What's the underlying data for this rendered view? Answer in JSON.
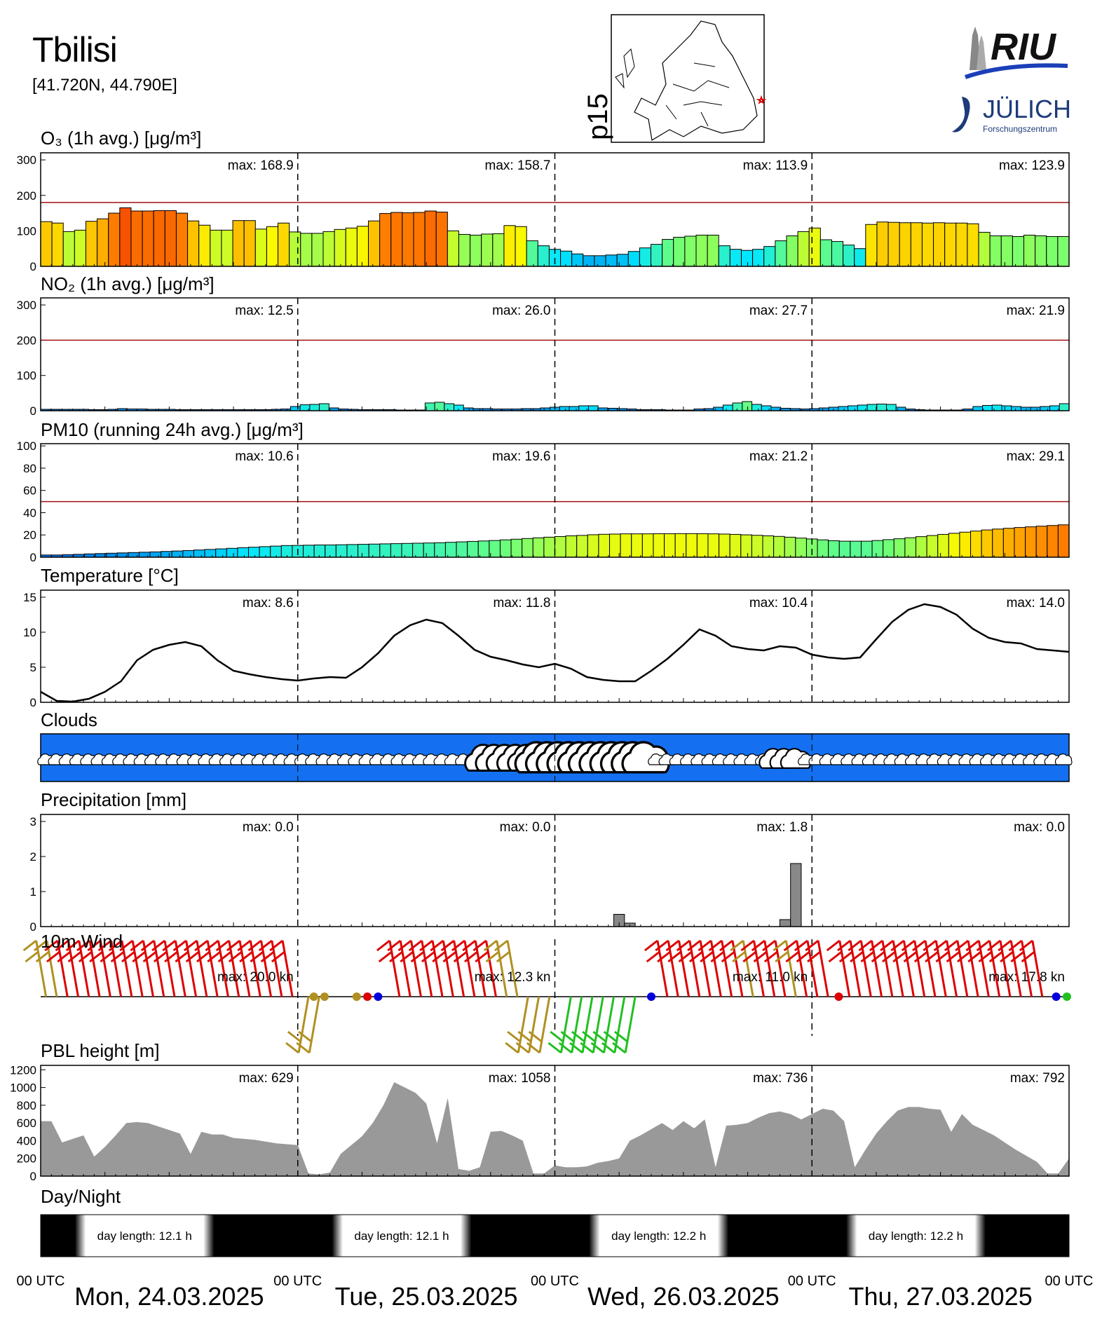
{
  "header": {
    "station": "Tbilisi",
    "coords": "[41.720N, 44.790E]",
    "map_label": "p15",
    "logo_riu": "RIU",
    "logo_julich": "JÜLICH",
    "logo_julich_sub": "Forschungszentrum"
  },
  "labels": {
    "o3": "O₃ (1h avg.) [μg/m³]",
    "no2": "NO₂ (1h avg.) [μg/m³]",
    "pm10": "PM10 (running 24h avg.) [μg/m³]",
    "temp": "Temperature [°C]",
    "clouds": "Clouds",
    "precip": "Precipitation [mm]",
    "wind": "10m Wind",
    "pbl": "PBL height [m]",
    "daynight": "Day/Night",
    "utc": "00 UTC"
  },
  "days": [
    "Mon, 24.03.2025",
    "Tue, 25.03.2025",
    "Wed, 26.03.2025",
    "Thu, 27.03.2025"
  ],
  "chart_data": [
    {
      "id": "o3",
      "type": "bar",
      "ylim": [
        0,
        320
      ],
      "yticks": [
        0,
        100,
        200,
        300
      ],
      "limit": 180,
      "max_labels": [
        "max: 168.9",
        "max: 158.7",
        "max: 113.9",
        "max: 123.9"
      ],
      "values": [
        126,
        122,
        98,
        102,
        127,
        134,
        150,
        165,
        156,
        156,
        157,
        157,
        150,
        128,
        116,
        102,
        102,
        129,
        129,
        105,
        112,
        122,
        97,
        93,
        93,
        98,
        104,
        108,
        113,
        128,
        149,
        152,
        151,
        152,
        156,
        153,
        100,
        90,
        88,
        91,
        92,
        115,
        112,
        72,
        58,
        48,
        43,
        35,
        30,
        30,
        32,
        34,
        42,
        52,
        62,
        76,
        82,
        85,
        88,
        88,
        58,
        48,
        45,
        48,
        56,
        72,
        86,
        98,
        108,
        75,
        70,
        60,
        50,
        118,
        125,
        124,
        123,
        123,
        122,
        123,
        122,
        122,
        120,
        96,
        86,
        86,
        84,
        88,
        86,
        84,
        84
      ]
    },
    {
      "id": "no2",
      "type": "bar",
      "ylim": [
        0,
        320
      ],
      "yticks": [
        0,
        100,
        200,
        300
      ],
      "limit": 200,
      "max_labels": [
        "max:  12.5",
        "max:  26.0",
        "max:  27.7",
        "max:  21.9"
      ],
      "values": [
        4,
        4,
        4,
        4,
        4,
        3,
        3,
        4,
        6,
        5,
        5,
        4,
        4,
        4,
        3,
        3,
        3,
        3,
        3,
        3,
        3,
        3,
        3,
        3,
        4,
        5,
        12,
        17,
        18,
        20,
        8,
        5,
        4,
        3,
        3,
        3,
        3,
        2,
        2,
        2,
        22,
        24,
        20,
        16,
        8,
        6,
        6,
        5,
        5,
        5,
        6,
        6,
        8,
        10,
        12,
        12,
        14,
        14,
        8,
        7,
        6,
        5,
        3,
        3,
        3,
        2,
        2,
        2,
        5,
        6,
        10,
        16,
        22,
        26,
        18,
        14,
        10,
        7,
        6,
        5,
        6,
        8,
        10,
        12,
        14,
        16,
        18,
        19,
        18,
        10,
        5,
        3,
        2,
        2,
        2,
        2,
        5,
        12,
        15,
        16,
        14,
        12,
        10,
        10,
        12,
        14,
        20
      ]
    },
    {
      "id": "pm10",
      "type": "bar",
      "ylim": [
        0,
        102
      ],
      "yticks": [
        0,
        20,
        40,
        60,
        80,
        100
      ],
      "limit": 50,
      "max_labels": [
        "max:  10.6",
        "max:  19.6",
        "max:  21.2",
        "max:  29.1"
      ],
      "values": [
        2,
        2,
        2.3,
        2.6,
        3,
        3.3,
        3.6,
        3.9,
        4.2,
        4.5,
        4.8,
        5.2,
        5.6,
        6,
        6.5,
        7,
        7.5,
        8,
        8.5,
        9,
        9.5,
        10,
        10.5,
        10.6,
        10.8,
        11,
        11,
        11.2,
        11.4,
        11.6,
        11.8,
        12,
        12.2,
        12.4,
        12.6,
        12.8,
        13,
        13.4,
        13.8,
        14.2,
        14.6,
        15,
        15.6,
        16.2,
        16.8,
        17.4,
        18,
        18.6,
        19.2,
        19.6,
        20.2,
        20.6,
        20.8,
        21,
        21,
        21,
        21.1,
        21.1,
        21.2,
        21.2,
        21.1,
        21,
        20.8,
        20.5,
        20.1,
        19.7,
        19.2,
        18.7,
        18,
        17.2,
        16.4,
        15.6,
        14.8,
        14.4,
        14.4,
        14.4,
        15,
        15.8,
        16.6,
        17.5,
        18.5,
        19.5,
        20.5,
        21.5,
        22.5,
        23.5,
        24.5,
        25.3,
        26,
        26.7,
        27.3,
        27.9,
        28.5,
        29.1
      ]
    },
    {
      "id": "temp",
      "type": "line",
      "ylim": [
        0,
        16
      ],
      "yticks": [
        0,
        5,
        10,
        15
      ],
      "max_labels": [
        "max:   8.6",
        "max:  11.8",
        "max:  10.4",
        "max:  14.0"
      ],
      "points": [
        [
          0,
          1.5
        ],
        [
          1.5,
          0.2
        ],
        [
          3,
          0.1
        ],
        [
          4.5,
          0.5
        ],
        [
          6,
          1.5
        ],
        [
          7.5,
          3
        ],
        [
          9,
          6
        ],
        [
          10.5,
          7.5
        ],
        [
          12,
          8.2
        ],
        [
          13.5,
          8.6
        ],
        [
          15,
          8
        ],
        [
          16.5,
          6
        ],
        [
          18,
          4.5
        ],
        [
          19.5,
          4
        ],
        [
          21,
          3.6
        ],
        [
          22.5,
          3.3
        ],
        [
          24,
          3.1
        ],
        [
          25.5,
          3.4
        ],
        [
          27,
          3.6
        ],
        [
          28.5,
          3.5
        ],
        [
          30,
          5
        ],
        [
          31.5,
          7
        ],
        [
          33,
          9.5
        ],
        [
          34.5,
          11
        ],
        [
          36,
          11.8
        ],
        [
          37.5,
          11.3
        ],
        [
          39,
          9.5
        ],
        [
          40.5,
          7.5
        ],
        [
          42,
          6.5
        ],
        [
          43.5,
          6
        ],
        [
          45,
          5.4
        ],
        [
          46.5,
          5
        ],
        [
          48,
          5.5
        ],
        [
          49.5,
          4.8
        ],
        [
          51,
          3.6
        ],
        [
          52.5,
          3.2
        ],
        [
          54,
          3
        ],
        [
          55.5,
          3
        ],
        [
          57,
          4.5
        ],
        [
          58.5,
          6.2
        ],
        [
          60,
          8.2
        ],
        [
          61.5,
          10.4
        ],
        [
          63,
          9.5
        ],
        [
          64.5,
          8
        ],
        [
          66,
          7.6
        ],
        [
          67.5,
          7.4
        ],
        [
          69,
          8
        ],
        [
          70.5,
          7.8
        ],
        [
          72,
          6.8
        ],
        [
          73.5,
          6.4
        ],
        [
          75,
          6.2
        ],
        [
          76.5,
          6.4
        ],
        [
          78,
          9
        ],
        [
          79.5,
          11.5
        ],
        [
          81,
          13.2
        ],
        [
          82.5,
          14
        ],
        [
          84,
          13.6
        ],
        [
          85.5,
          12.5
        ],
        [
          87,
          10.5
        ],
        [
          88.5,
          9.2
        ],
        [
          90,
          8.6
        ],
        [
          91.5,
          8.4
        ],
        [
          93,
          7.6
        ],
        [
          94.5,
          7.4
        ],
        [
          96,
          7.2
        ]
      ]
    },
    {
      "id": "precip",
      "type": "bar",
      "ylim": [
        0,
        3.2
      ],
      "yticks": [
        0,
        1,
        2,
        3
      ],
      "max_labels": [
        "max:   0.0",
        "max:   0.0",
        "max:   1.8",
        "max:   0.0"
      ],
      "bars": [
        {
          "x": 53.5,
          "value": 0.35
        },
        {
          "x": 54.5,
          "value": 0.1
        },
        {
          "x": 69,
          "value": 0.2
        },
        {
          "x": 70,
          "value": 1.8
        }
      ]
    },
    {
      "id": "wind",
      "type": "scatter",
      "max_labels": [
        "max:  20.0 kn",
        "max:  12.3 kn",
        "max:  11.0 kn",
        "max:  17.8 kn"
      ],
      "colors": {
        "strong": "#dd0000",
        "medium": "#b09020",
        "light": "#20c020",
        "calm": "#0000dd"
      }
    },
    {
      "id": "pbl",
      "type": "area",
      "ylim": [
        0,
        1250
      ],
      "yticks": [
        0,
        200,
        400,
        600,
        800,
        1000,
        1200
      ],
      "max_labels": [
        "max:  629",
        "max: 1058",
        "max:  736",
        "max:  792"
      ],
      "points": [
        [
          0,
          620
        ],
        [
          1,
          620
        ],
        [
          2,
          380
        ],
        [
          3,
          420
        ],
        [
          4,
          460
        ],
        [
          5,
          220
        ],
        [
          6,
          330
        ],
        [
          7,
          460
        ],
        [
          8,
          600
        ],
        [
          9,
          610
        ],
        [
          10,
          600
        ],
        [
          11,
          560
        ],
        [
          12,
          520
        ],
        [
          13,
          480
        ],
        [
          14,
          250
        ],
        [
          15,
          500
        ],
        [
          16,
          470
        ],
        [
          17,
          470
        ],
        [
          18,
          430
        ],
        [
          19,
          420
        ],
        [
          20,
          410
        ],
        [
          21,
          390
        ],
        [
          22,
          370
        ],
        [
          23,
          360
        ],
        [
          24,
          350
        ],
        [
          25,
          30
        ],
        [
          26,
          20
        ],
        [
          27,
          40
        ],
        [
          28,
          250
        ],
        [
          29,
          350
        ],
        [
          30,
          450
        ],
        [
          31,
          600
        ],
        [
          32,
          800
        ],
        [
          33,
          1060
        ],
        [
          34,
          1000
        ],
        [
          35,
          940
        ],
        [
          36,
          820
        ],
        [
          37,
          370
        ],
        [
          38,
          880
        ],
        [
          39,
          80
        ],
        [
          40,
          60
        ],
        [
          41,
          100
        ],
        [
          42,
          500
        ],
        [
          43,
          510
        ],
        [
          44,
          460
        ],
        [
          45,
          400
        ],
        [
          46,
          30
        ],
        [
          47,
          30
        ],
        [
          48,
          120
        ],
        [
          49,
          100
        ],
        [
          50,
          100
        ],
        [
          51,
          110
        ],
        [
          52,
          150
        ],
        [
          53,
          170
        ],
        [
          54,
          200
        ],
        [
          55,
          400
        ],
        [
          56,
          460
        ],
        [
          57,
          530
        ],
        [
          58,
          600
        ],
        [
          59,
          520
        ],
        [
          60,
          620
        ],
        [
          61,
          540
        ],
        [
          62,
          640
        ],
        [
          63,
          100
        ],
        [
          64,
          570
        ],
        [
          65,
          580
        ],
        [
          66,
          600
        ],
        [
          67,
          660
        ],
        [
          68,
          710
        ],
        [
          69,
          730
        ],
        [
          70,
          700
        ],
        [
          71,
          640
        ],
        [
          72,
          700
        ],
        [
          73,
          760
        ],
        [
          74,
          740
        ],
        [
          75,
          620
        ],
        [
          76,
          100
        ],
        [
          77,
          300
        ],
        [
          78,
          480
        ],
        [
          79,
          620
        ],
        [
          80,
          740
        ],
        [
          81,
          780
        ],
        [
          82,
          780
        ],
        [
          83,
          760
        ],
        [
          84,
          750
        ],
        [
          85,
          500
        ],
        [
          86,
          700
        ],
        [
          87,
          580
        ],
        [
          88,
          520
        ],
        [
          89,
          460
        ],
        [
          90,
          380
        ],
        [
          91,
          300
        ],
        [
          92,
          230
        ],
        [
          93,
          160
        ],
        [
          94,
          30
        ],
        [
          95,
          30
        ],
        [
          96,
          200
        ]
      ]
    },
    {
      "id": "daynight",
      "type": "heatmap",
      "day_labels": [
        "day length:  12.1 h",
        "day length:  12.1 h",
        "day length:  12.2 h",
        "day length:  12.2 h"
      ]
    }
  ]
}
